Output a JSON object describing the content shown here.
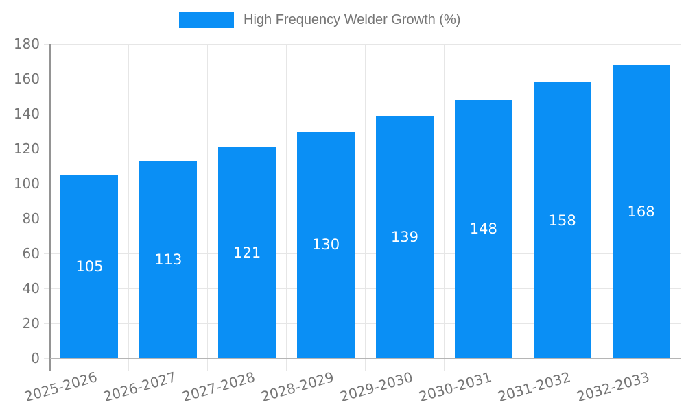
{
  "legend": {
    "label": "High Frequency Welder Growth (%)"
  },
  "chart_data": {
    "type": "bar",
    "title": "High Frequency Welder Growth (%)",
    "xlabel": "",
    "ylabel": "",
    "categories": [
      "2025-2026",
      "2026-2027",
      "2027-2028",
      "2028-2029",
      "2029-2030",
      "2030-2031",
      "2031-2032",
      "2032-2033"
    ],
    "values": [
      105,
      113,
      121,
      130,
      139,
      148,
      158,
      168
    ],
    "value_labels": [
      "105",
      "113",
      "121",
      "130",
      "139",
      "148",
      "158",
      "168"
    ],
    "ylim": [
      0,
      180
    ],
    "yticks": [
      0,
      20,
      40,
      60,
      80,
      100,
      120,
      140,
      160,
      180
    ],
    "grid": true,
    "legend_position": "top",
    "bar_color": "#0a8ff5",
    "value_label_color": "#ffffff",
    "axis_text_color": "#757575",
    "grid_color": "#e6e6e6",
    "yaxis_line_color": "#949494",
    "baseline_color": "#b5b5b5",
    "background_color": "#ffffff"
  }
}
